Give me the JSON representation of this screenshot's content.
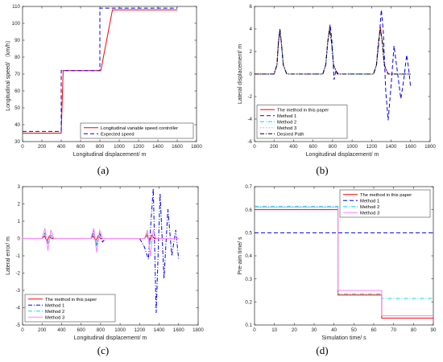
{
  "chart_data": [
    {
      "id": "a",
      "type": "line",
      "caption": "(a)",
      "xlabel": "Longitudinal displacement/ m",
      "ylabel": "Longitudinal speed/ （km/h）",
      "xlim": [
        0,
        1800
      ],
      "ylim": [
        30,
        110
      ],
      "xticks": [
        0,
        200,
        400,
        600,
        800,
        1000,
        1200,
        1400,
        1600,
        1800
      ],
      "yticks": [
        30,
        40,
        50,
        60,
        70,
        80,
        90,
        100,
        110
      ],
      "legend_position": "bottom-right",
      "series": [
        {
          "name": "Longitudinal variable speed controller",
          "color": "#ff0000",
          "dash": "solid",
          "x": [
            0,
            400,
            420,
            810,
            930,
            1600
          ],
          "y": [
            35,
            35,
            72,
            72,
            108,
            108
          ]
        },
        {
          "name": "Expected speed",
          "color": "#0000ff",
          "dash": "dashed",
          "x": [
            0,
            400,
            400,
            800,
            800,
            1600
          ],
          "y": [
            36,
            36,
            72,
            72,
            109,
            109
          ]
        }
      ]
    },
    {
      "id": "b",
      "type": "line",
      "caption": "(b)",
      "xlabel": "Longitudinal displacement/ m",
      "ylabel": "Lateral displacement/ m",
      "xlim": [
        0,
        1800
      ],
      "ylim": [
        -6,
        6
      ],
      "xticks": [
        0,
        200,
        400,
        600,
        800,
        1000,
        1200,
        1400,
        1600,
        1800
      ],
      "yticks": [
        -6,
        -4,
        -2,
        0,
        2,
        4,
        6
      ],
      "legend_position": "bottom-left",
      "series": [
        {
          "name": "The method in this paper",
          "color": "#ff0000",
          "dash": "solid",
          "x": [
            0,
            200,
            230,
            245,
            260,
            275,
            295,
            330,
            700,
            730,
            750,
            770,
            790,
            810,
            850,
            1220,
            1250,
            1270,
            1290,
            1310,
            1330,
            1370,
            1600
          ],
          "y": [
            0,
            0,
            0.8,
            2.8,
            3.9,
            2.8,
            0.8,
            0,
            0,
            0.8,
            2.8,
            4.1,
            2.8,
            0.8,
            0,
            0,
            0.8,
            2.8,
            4.2,
            2.8,
            0.8,
            0,
            0
          ]
        },
        {
          "name": "Method 1",
          "color": "#0000ff",
          "dash": "dashed",
          "x": [
            0,
            200,
            230,
            245,
            260,
            275,
            295,
            330,
            700,
            730,
            750,
            775,
            795,
            815,
            835,
            860,
            1220,
            1250,
            1275,
            1300,
            1320,
            1345,
            1370,
            1400,
            1430,
            1460,
            1500,
            1530,
            1560,
            1580,
            1600
          ],
          "y": [
            0,
            0,
            0.8,
            2.8,
            4.0,
            2.8,
            0.8,
            0,
            0,
            0.8,
            2.8,
            4.4,
            2.8,
            -0.5,
            0.3,
            0,
            0,
            0.8,
            2.8,
            5.7,
            3.8,
            -1.5,
            -4.1,
            -1.0,
            2.5,
            0.5,
            -2.2,
            -0.5,
            1.7,
            0.5,
            -1.2
          ]
        },
        {
          "name": "Method 2",
          "color": "#00e0e0",
          "dash": "dashdot",
          "x": [
            0,
            200,
            230,
            245,
            260,
            275,
            295,
            330,
            700,
            730,
            750,
            770,
            790,
            810,
            850,
            1220,
            1250,
            1270,
            1290,
            1310,
            1330,
            1370,
            1600
          ],
          "y": [
            0,
            0,
            0.8,
            2.8,
            3.8,
            2.8,
            0.8,
            0,
            0,
            0.8,
            2.8,
            4.0,
            2.8,
            0.8,
            0,
            0,
            0.8,
            2.8,
            4.0,
            2.8,
            0.8,
            0,
            0
          ]
        },
        {
          "name": "Method 3",
          "color": "#ff80ff",
          "dash": "dotted",
          "x": [
            0,
            200,
            230,
            245,
            260,
            275,
            295,
            330,
            700,
            730,
            750,
            770,
            790,
            810,
            850,
            1220,
            1250,
            1270,
            1290,
            1310,
            1330,
            1370,
            1600
          ],
          "y": [
            0,
            0,
            0.8,
            2.8,
            3.7,
            2.8,
            0.8,
            0,
            0,
            0.8,
            2.8,
            3.9,
            2.8,
            0.8,
            0,
            0,
            0.8,
            2.8,
            3.9,
            2.8,
            0.8,
            0,
            0
          ]
        },
        {
          "name": "Desired Path",
          "color": "#000000",
          "dash": "dashdot",
          "x": [
            0,
            200,
            230,
            245,
            260,
            275,
            295,
            330,
            700,
            730,
            750,
            770,
            790,
            810,
            850,
            1220,
            1250,
            1270,
            1290,
            1310,
            1330,
            1370,
            1600
          ],
          "y": [
            0,
            0,
            0.8,
            2.8,
            3.9,
            2.8,
            0.8,
            0,
            0,
            0.8,
            2.8,
            4.0,
            2.8,
            0.8,
            0,
            0,
            0.8,
            2.8,
            4.0,
            2.8,
            0.8,
            0,
            0
          ]
        }
      ]
    },
    {
      "id": "c",
      "type": "line",
      "caption": "(c)",
      "xlabel": "Longitudinal displacement/ m",
      "ylabel": "Lateral error/ m",
      "xlim": [
        0,
        1800
      ],
      "ylim": [
        -5,
        3
      ],
      "xticks": [
        0,
        200,
        400,
        600,
        800,
        1000,
        1200,
        1400,
        1600,
        1800
      ],
      "yticks": [
        -5,
        -4,
        -3,
        -2,
        -1,
        0,
        1,
        2,
        3
      ],
      "legend_position": "bottom-left",
      "series": [
        {
          "name": "The method in this paper",
          "color": "#ff0000",
          "dash": "solid",
          "x": [
            0,
            200,
            225,
            250,
            275,
            300,
            700,
            725,
            750,
            775,
            800,
            1250,
            1275,
            1300,
            1325,
            1350,
            1600
          ],
          "y": [
            0,
            0,
            0.15,
            -0.15,
            0.15,
            0,
            0,
            0.15,
            -0.15,
            0.15,
            0,
            0,
            0.2,
            -0.2,
            0.2,
            0,
            0
          ]
        },
        {
          "name": "Method 1",
          "color": "#0000ff",
          "dash": "dashdot",
          "x": [
            0,
            200,
            230,
            260,
            290,
            320,
            700,
            730,
            760,
            790,
            820,
            850,
            1200,
            1250,
            1290,
            1340,
            1370,
            1410,
            1450,
            1490,
            1530,
            1570,
            1600
          ],
          "y": [
            0,
            0,
            0.3,
            -0.3,
            0.2,
            0,
            0,
            0.4,
            -0.4,
            0.3,
            -0.2,
            0,
            0,
            -0.5,
            -1.2,
            2.9,
            -4.3,
            2.6,
            -2.3,
            1.7,
            -1.0,
            0.5,
            -1.2
          ]
        },
        {
          "name": "Method 2",
          "color": "#00e0e0",
          "dash": "dashdot",
          "x": [
            0,
            200,
            230,
            260,
            290,
            320,
            700,
            730,
            760,
            790,
            820,
            1250,
            1280,
            1310,
            1340,
            1370,
            1600
          ],
          "y": [
            0,
            0,
            0.25,
            -0.25,
            0.2,
            0,
            0,
            0.3,
            -0.3,
            0.2,
            0,
            0,
            0.3,
            -0.3,
            0.2,
            0,
            0
          ]
        },
        {
          "name": "Method 3",
          "color": "#ff80ff",
          "dash": "solid",
          "x": [
            0,
            200,
            230,
            260,
            290,
            320,
            700,
            730,
            760,
            790,
            820,
            1250,
            1280,
            1310,
            1340,
            1370,
            1600
          ],
          "y": [
            0,
            0,
            0.6,
            -0.7,
            0.5,
            0,
            0,
            0.6,
            -0.8,
            0.5,
            0,
            0,
            0.5,
            -1.0,
            0.5,
            0,
            0
          ]
        }
      ]
    },
    {
      "id": "d",
      "type": "line",
      "caption": "(d)",
      "xlabel": "Simulation time/ s",
      "ylabel": "Pre-aim time/ s",
      "xlim": [
        0,
        90
      ],
      "ylim": [
        0.1,
        0.7
      ],
      "xticks": [
        0,
        10,
        20,
        30,
        40,
        50,
        60,
        70,
        80,
        90
      ],
      "yticks": [
        0.1,
        0.2,
        0.3,
        0.4,
        0.5,
        0.6,
        0.7
      ],
      "legend_position": "top-right",
      "series": [
        {
          "name": "The method in this paper",
          "color": "#ff0000",
          "dash": "solid",
          "x": [
            0,
            42,
            42,
            64,
            64,
            90
          ],
          "y": [
            0.6,
            0.6,
            0.23,
            0.23,
            0.13,
            0.13
          ]
        },
        {
          "name": "Method 1",
          "color": "#0000ff",
          "dash": "dashed",
          "x": [
            0,
            90
          ],
          "y": [
            0.5,
            0.5
          ]
        },
        {
          "name": "Method 2",
          "color": "#00e0e0",
          "dash": "dashdot",
          "x": [
            0,
            42,
            42,
            64,
            64,
            90
          ],
          "y": [
            0.615,
            0.615,
            0.235,
            0.235,
            0.215,
            0.215
          ]
        },
        {
          "name": "Method 3",
          "color": "#ff80ff",
          "dash": "solid",
          "x": [
            0,
            42,
            42,
            64,
            64,
            90
          ],
          "y": [
            0.61,
            0.61,
            0.25,
            0.25,
            0.14,
            0.14
          ]
        }
      ]
    }
  ]
}
